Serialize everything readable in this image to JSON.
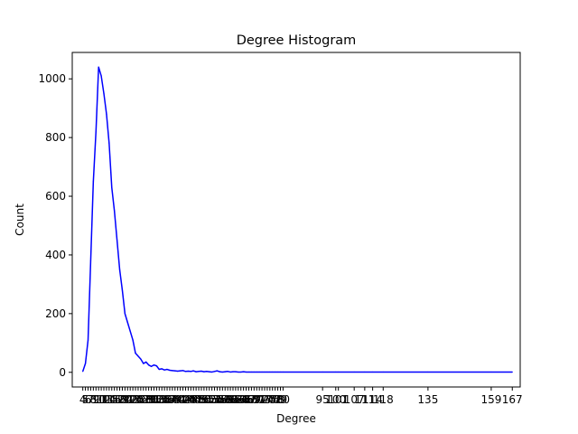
{
  "chart_data": {
    "type": "line",
    "title": "Degree Histogram",
    "xlabel": "Degree",
    "ylabel": "Count",
    "xlim": [
      0,
      170
    ],
    "ylim": [
      -50,
      1090
    ],
    "yticks": [
      0,
      200,
      400,
      600,
      800,
      1000
    ],
    "xticks": [
      4,
      5,
      6,
      7,
      8,
      9,
      10,
      11,
      12,
      13,
      14,
      15,
      16,
      17,
      18,
      19,
      20,
      21,
      22,
      23,
      24,
      25,
      26,
      27,
      28,
      29,
      30,
      31,
      32,
      33,
      34,
      35,
      36,
      37,
      38,
      39,
      40,
      41,
      42,
      43,
      44,
      45,
      46,
      47,
      48,
      49,
      50,
      51,
      52,
      53,
      54,
      55,
      56,
      57,
      58,
      59,
      60,
      61,
      62,
      63,
      64,
      65,
      66,
      67,
      68,
      69,
      70,
      71,
      72,
      73,
      74,
      75,
      76,
      77,
      78,
      79,
      80,
      95,
      100,
      101,
      107,
      111,
      114,
      118,
      135,
      159,
      167
    ],
    "grid": false,
    "series": [
      {
        "color": "#0000ff",
        "x": [
          4,
          5,
          6,
          7,
          8,
          9,
          10,
          11,
          12,
          13,
          14,
          15,
          16,
          17,
          18,
          19,
          20,
          21,
          22,
          23,
          24,
          25,
          26,
          27,
          28,
          29,
          30,
          31,
          32,
          33,
          34,
          35,
          36,
          37,
          38,
          39,
          40,
          41,
          42,
          43,
          44,
          45,
          46,
          47,
          48,
          49,
          50,
          51,
          52,
          53,
          54,
          55,
          56,
          57,
          58,
          59,
          60,
          61,
          62,
          63,
          64,
          65,
          66,
          67,
          68,
          69,
          70,
          71,
          72,
          73,
          74,
          75,
          76,
          77,
          78,
          79,
          80,
          95,
          100,
          101,
          107,
          111,
          114,
          118,
          135,
          159,
          167
        ],
        "y": [
          3,
          30,
          110,
          380,
          650,
          820,
          1040,
          1010,
          950,
          880,
          780,
          630,
          550,
          450,
          350,
          280,
          200,
          170,
          140,
          110,
          65,
          55,
          45,
          30,
          35,
          25,
          20,
          25,
          22,
          10,
          12,
          8,
          10,
          7,
          6,
          5,
          4,
          5,
          6,
          3,
          4,
          3,
          5,
          2,
          3,
          4,
          2,
          3,
          2,
          1,
          3,
          5,
          2,
          1,
          2,
          3,
          1,
          2,
          2,
          1,
          1,
          2,
          1,
          1,
          1,
          1,
          1,
          1,
          1,
          1,
          1,
          1,
          1,
          1,
          1,
          1,
          1,
          1,
          1,
          1,
          1,
          1,
          1,
          1,
          1,
          1,
          1
        ]
      }
    ]
  }
}
